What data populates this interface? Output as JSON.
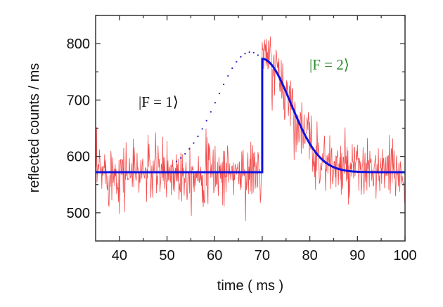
{
  "chart_data": {
    "type": "line",
    "title": "",
    "xlabel": "time ( ms )",
    "ylabel": "reflected counts / ms",
    "xlim": [
      35,
      100
    ],
    "ylim": [
      450,
      850
    ],
    "xticks": [
      40,
      50,
      60,
      70,
      80,
      90,
      100
    ],
    "yticks": [
      500,
      600,
      700,
      800
    ],
    "grid": false,
    "annotations": [
      {
        "text": "|F = 1⟩",
        "x": 58,
        "y": 712,
        "color": "#111111"
      },
      {
        "text": "|F = 2⟩",
        "x": 82,
        "y": 770,
        "color": "#2e8b2e"
      }
    ],
    "series": [
      {
        "name": "measured counts",
        "color": "#ee1111",
        "style": "noisy-line",
        "model": {
          "baseline": 572,
          "step_time": 70,
          "peak": 773,
          "decay_width_ms": 8.5
        },
        "noise_sigma": 28,
        "sample_step_ms": 0.1
      },
      {
        "name": "fit",
        "color": "#1010e0",
        "style": "solid",
        "model": {
          "baseline": 572,
          "step_time": 70,
          "peak": 773,
          "decay_width_ms": 8.5
        }
      },
      {
        "name": "|F = 1⟩ profile",
        "color": "#2020c0",
        "style": "dotted",
        "model": {
          "baseline": 572,
          "center": 67.5,
          "peak": 785,
          "width_ms": 10,
          "x_range": [
            52,
            70
          ]
        }
      }
    ]
  }
}
